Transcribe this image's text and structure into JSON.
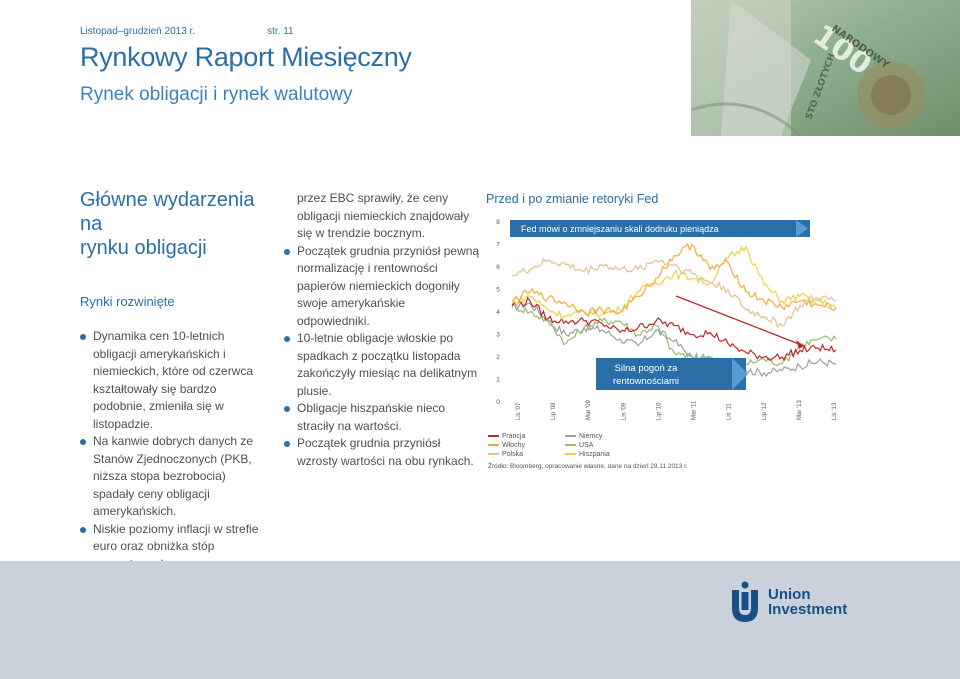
{
  "header": {
    "date": "Listopad–grudzień 2013 r.",
    "page": "str. 11",
    "title": "Rynkowy Raport Miesięczny",
    "subtitle": "Rynek obligacji i rynek walutowy"
  },
  "section": {
    "title_line1": "Główne wydarzenia na",
    "title_line2": "rynku obligacji",
    "region": "Rynki rozwinięte"
  },
  "column1": [
    "Dynamika cen 10-letnich obligacji amerykańskich i niemieckich, które od czerwca kształtowały się bardzo podobnie, zmieniła się w listopadzie.",
    "Na kanwie dobrych danych ze Stanów Zjednoczonych (PKB, niższa stopa bezrobocia) spadały ceny obligacji amerykańskich.",
    "Niskie poziomy inflacji w strefie euro oraz obniżka stóp procentowych"
  ],
  "column2": {
    "continuation": "przez EBC sprawiły, że ceny obligacji niemieckich znajdowały się w trendzie bocznym.",
    "bullets": [
      "Początek grudnia przyniósł pewną normalizację i rentowności papierów niemieckich dogoniły swoje amerykańskie odpowiedniki.",
      "10-letnie obligacje włoskie po spadkach z początku listopada zakończyły miesiąc na delikatnym plusie.",
      "Obligacje hiszpańskie nieco straciły na wartości.",
      "Początek grudnia przyniósł wzrosty wartości na obu rynkach."
    ]
  },
  "chart_title": "Przed i po zmianie retoryki Fed",
  "chart_data": {
    "type": "line",
    "title": "Przed i po zmianie retoryki Fed",
    "y_ticks": [
      "0",
      "1",
      "2",
      "3",
      "4",
      "5",
      "6",
      "7",
      "8"
    ],
    "ylim": [
      0,
      8
    ],
    "x_ticks": [
      "Lis '07",
      "Lip '08",
      "Mar '09",
      "Lis '09",
      "Lip '10",
      "Mar '11",
      "Lis '11",
      "Lip '12",
      "Mar '13",
      "Lis '13"
    ],
    "x": [
      0,
      4,
      8,
      12,
      16,
      20,
      24,
      28,
      32,
      36,
      40,
      44,
      48,
      52,
      56,
      60,
      64,
      68,
      72
    ],
    "series": [
      {
        "name": "Francja",
        "color": "#c0272d",
        "values": [
          4.3,
          4.5,
          3.7,
          3.6,
          3.6,
          3.5,
          3.1,
          3.3,
          3.6,
          3.4,
          3.0,
          3.1,
          2.6,
          2.2,
          2.0,
          2.0,
          2.3,
          2.4,
          2.3
        ]
      },
      {
        "name": "Włochy",
        "color": "#f2ab3d",
        "values": [
          4.5,
          4.9,
          4.6,
          4.4,
          4.0,
          4.1,
          4.0,
          4.7,
          5.5,
          6.5,
          7.0,
          5.9,
          6.2,
          4.9,
          4.5,
          4.2,
          4.5,
          4.3,
          4.2
        ]
      },
      {
        "name": "Polska",
        "color": "#e3c08d",
        "values": [
          5.6,
          5.9,
          6.3,
          6.1,
          5.8,
          6.1,
          5.9,
          5.9,
          6.3,
          6.1,
          5.7,
          5.3,
          5.0,
          4.1,
          3.8,
          3.4,
          4.3,
          4.6,
          4.5
        ]
      },
      {
        "name": "Niemcy",
        "color": "#9aa0a6",
        "values": [
          4.2,
          4.4,
          3.6,
          3.0,
          3.3,
          3.2,
          2.8,
          2.5,
          3.2,
          2.7,
          2.0,
          1.9,
          1.5,
          1.4,
          1.3,
          1.4,
          1.6,
          1.8,
          1.7
        ]
      },
      {
        "name": "USA",
        "color": "#9db96f",
        "values": [
          4.3,
          4.0,
          3.6,
          2.6,
          3.3,
          3.6,
          3.6,
          3.0,
          3.4,
          2.2,
          2.0,
          2.0,
          1.6,
          1.7,
          1.9,
          1.7,
          2.5,
          2.8,
          2.8
        ]
      },
      {
        "name": "Hiszpania",
        "color": "#f0d04a",
        "values": [
          4.4,
          4.7,
          4.1,
          3.8,
          4.0,
          3.9,
          4.1,
          4.9,
          5.3,
          5.7,
          5.5,
          5.3,
          6.4,
          6.9,
          5.2,
          4.5,
          4.7,
          4.5,
          4.2
        ]
      }
    ],
    "annotations": [
      {
        "text": "Fed mówi o zmniejszaniu skali dodruku pieniądza"
      },
      {
        "text_line1": "Silna pogoń za",
        "text_line2": "rentownościami"
      }
    ],
    "source": "Źródło: Bloomberg, opracowanie własne, dane na dzień 29.11.2013 r."
  },
  "logo": {
    "line1": "Union",
    "line2": "Investment"
  },
  "colors": {
    "brand_blue": "#2a6fa8",
    "arrow_blue": "#5b9bd5",
    "footer": "#c9d1db"
  }
}
